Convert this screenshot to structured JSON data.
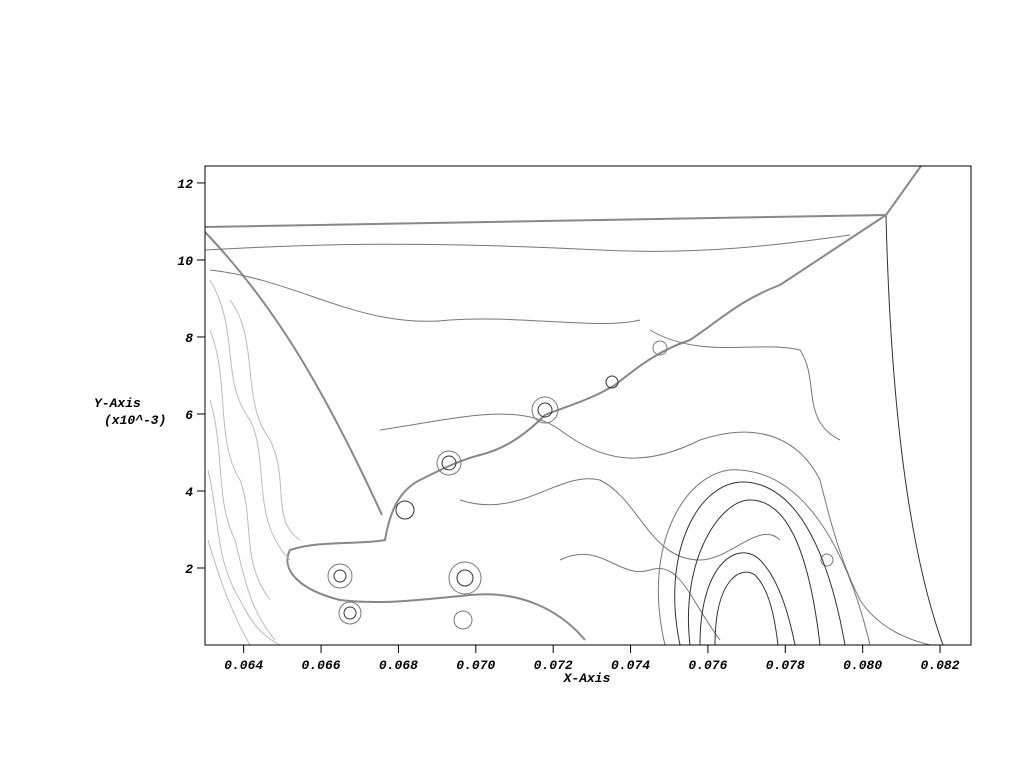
{
  "chart_data": {
    "type": "contour",
    "xlabel": "X-Axis",
    "ylabel": "Y-Axis",
    "yscale_label": "(x10^-3)",
    "xlim": [
      0.063,
      0.0828
    ],
    "ylim": [
      0,
      12.44
    ],
    "xticks": [
      0.064,
      0.066,
      0.068,
      {
        "value": 0.07,
        "label": "0.070"
      },
      0.072,
      0.074,
      0.076,
      0.078,
      {
        "value": 0.08,
        "label": "0.080"
      },
      0.082
    ],
    "yticks": [
      2,
      4,
      6,
      8,
      10,
      12
    ]
  }
}
